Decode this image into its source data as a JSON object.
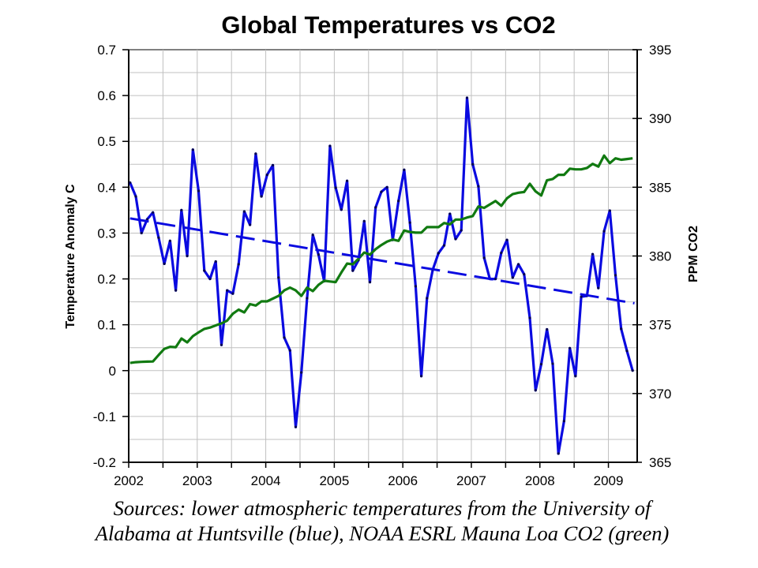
{
  "chart_data": {
    "type": "line",
    "title": "Global Temperatures vs CO2",
    "xlabel": "",
    "ylabel": "Temperature Anomaly C",
    "y2label": "PPM CO2",
    "xlim": [
      2002,
      2009.42
    ],
    "ylim": [
      -0.2,
      0.7
    ],
    "y2lim": [
      365,
      395
    ],
    "x_ticks": [
      "2002",
      "2003",
      "2004",
      "2005",
      "2006",
      "2007",
      "2008",
      "2009"
    ],
    "x_tick_values": [
      2002,
      2003,
      2004,
      2005,
      2006,
      2007,
      2008,
      2009
    ],
    "y_ticks": [
      "-0.2",
      "-0.1",
      "0",
      "0.1",
      "0.2",
      "0.3",
      "0.4",
      "0.5",
      "0.6",
      "0.7"
    ],
    "y_tick_values": [
      -0.2,
      -0.1,
      0,
      0.1,
      0.2,
      0.3,
      0.4,
      0.5,
      0.6,
      0.7
    ],
    "y2_ticks": [
      "365",
      "370",
      "375",
      "380",
      "385",
      "390",
      "395"
    ],
    "y2_tick_values": [
      365,
      370,
      375,
      380,
      385,
      390,
      395
    ],
    "grid": true,
    "x_start": 2002.02,
    "x_step_months": 1,
    "series": [
      {
        "name": "Temperature anomaly (UAH lower troposphere)",
        "axis": "left",
        "color": "#0a0ae0",
        "style": "solid",
        "values": [
          0.41,
          0.38,
          0.3,
          0.33,
          0.345,
          0.29,
          0.233,
          0.283,
          0.175,
          0.35,
          0.25,
          0.482,
          0.392,
          0.218,
          0.2,
          0.238,
          0.056,
          0.175,
          0.168,
          0.232,
          0.347,
          0.318,
          0.473,
          0.38,
          0.427,
          0.448,
          0.203,
          0.072,
          0.044,
          -0.123,
          -0.004,
          0.158,
          0.296,
          0.253,
          0.195,
          0.49,
          0.399,
          0.351,
          0.414,
          0.218,
          0.241,
          0.326,
          0.193,
          0.356,
          0.39,
          0.4,
          0.285,
          0.37,
          0.438,
          0.323,
          0.184,
          -0.012,
          0.158,
          0.22,
          0.256,
          0.273,
          0.342,
          0.287,
          0.306,
          0.595,
          0.45,
          0.402,
          0.246,
          0.2,
          0.2,
          0.257,
          0.285,
          0.203,
          0.232,
          0.21,
          0.115,
          -0.043,
          0.014,
          0.09,
          0.015,
          -0.181,
          -0.11,
          0.049,
          -0.012,
          0.161,
          0.163,
          0.254,
          0.18,
          0.304,
          0.349,
          0.208,
          0.091,
          0.043,
          0.0
        ]
      },
      {
        "name": "CO2 (NOAA ESRL Mauna Loa)",
        "axis": "right",
        "color": "#117a11",
        "style": "solid",
        "values": [
          372.22,
          372.28,
          372.3,
          372.32,
          372.33,
          372.8,
          373.25,
          373.4,
          373.37,
          374.0,
          373.72,
          374.17,
          374.45,
          374.7,
          374.8,
          374.95,
          375.1,
          375.3,
          375.8,
          376.1,
          375.9,
          376.5,
          376.4,
          376.7,
          376.7,
          376.9,
          377.1,
          377.5,
          377.7,
          377.5,
          377.1,
          377.7,
          377.45,
          377.9,
          378.2,
          378.15,
          378.1,
          378.8,
          379.45,
          379.4,
          379.8,
          380.25,
          380.1,
          380.5,
          380.8,
          381.05,
          381.2,
          381.1,
          381.85,
          381.75,
          381.7,
          381.7,
          382.1,
          382.1,
          382.1,
          382.4,
          382.3,
          382.65,
          382.65,
          382.8,
          382.9,
          383.6,
          383.5,
          383.75,
          384.0,
          383.65,
          384.2,
          384.5,
          384.6,
          384.65,
          385.25,
          384.7,
          384.4,
          385.5,
          385.6,
          385.9,
          385.9,
          386.35,
          386.3,
          386.3,
          386.4,
          386.7,
          386.5,
          387.3,
          386.75,
          387.1,
          387.0,
          387.05,
          387.1
        ]
      },
      {
        "name": "Temperature linear trend",
        "axis": "left",
        "color": "#0a0ae0",
        "style": "dashed",
        "x": [
          2002.02,
          2009.38
        ],
        "values": [
          0.332,
          0.147
        ]
      }
    ]
  },
  "footer": {
    "line1": "Sources: lower atmospheric temperatures from the University of",
    "line2": "Alabama at Huntsville (blue), NOAA ESRL Mauna Loa CO2 (green)"
  }
}
